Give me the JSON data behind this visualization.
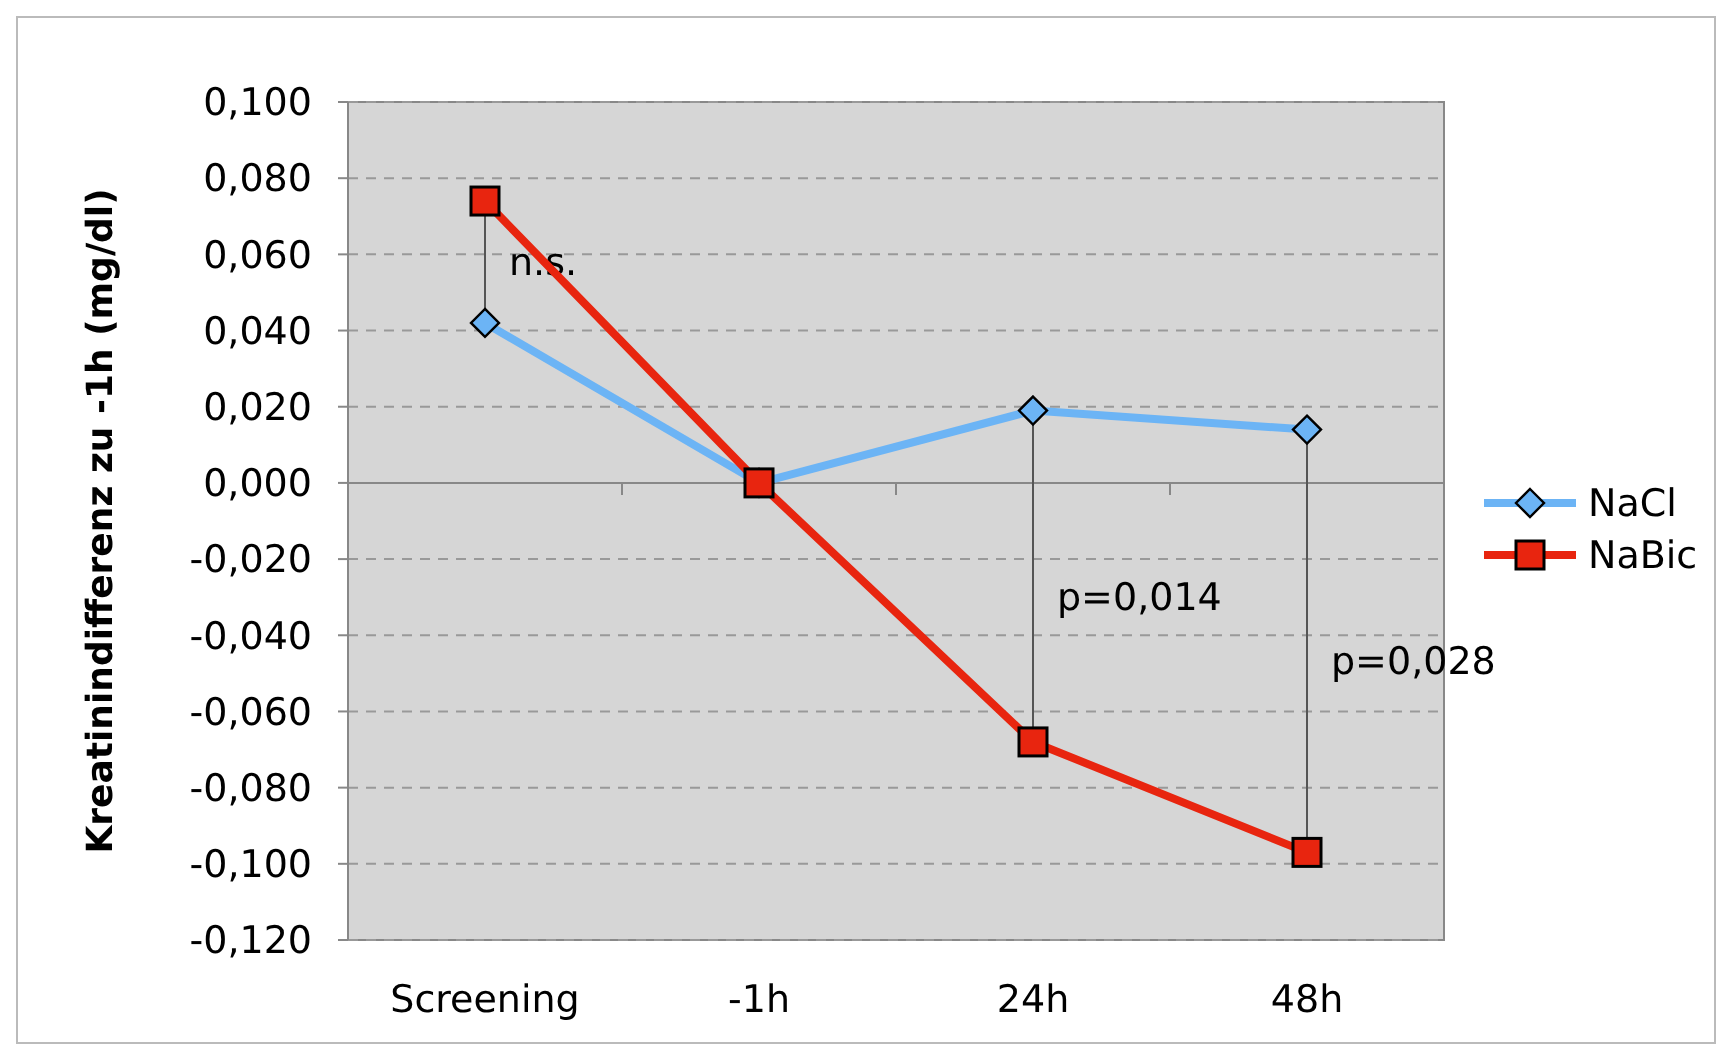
{
  "chart_data": {
    "type": "line",
    "ylabel": "Kreatinindifferenz zu -1h (mg/dl)",
    "categories": [
      "Screening",
      "-1h",
      "24h",
      "48h"
    ],
    "series": [
      {
        "name": "NaCl",
        "color": "#6cb4f5",
        "marker": "diamond",
        "values": [
          0.042,
          0,
          0.019,
          0.014
        ]
      },
      {
        "name": "NaBic",
        "color": "#e8250f",
        "marker": "square",
        "values": [
          0.074,
          0,
          -0.068,
          -0.097
        ]
      }
    ],
    "ylim": [
      -0.12,
      0.1
    ],
    "yticks": [
      {
        "value": 0.1,
        "label": "0,100"
      },
      {
        "value": 0.08,
        "label": "0,080"
      },
      {
        "value": 0.06,
        "label": "0,060"
      },
      {
        "value": 0.04,
        "label": "0,040"
      },
      {
        "value": 0.02,
        "label": "0,020"
      },
      {
        "value": 0,
        "label": "0,000"
      },
      {
        "value": -0.02,
        "label": "-0,020"
      },
      {
        "value": -0.04,
        "label": "-0,040"
      },
      {
        "value": -0.06,
        "label": "-0,060"
      },
      {
        "value": -0.08,
        "label": "-0,080"
      },
      {
        "value": -0.1,
        "label": "-0,100"
      },
      {
        "value": -0.12,
        "label": "-0,120"
      }
    ],
    "grid": "y",
    "legend": "right",
    "line_style": "solid",
    "annotations": [
      "n.s.",
      "p=0,014",
      "p=0,028"
    ]
  }
}
